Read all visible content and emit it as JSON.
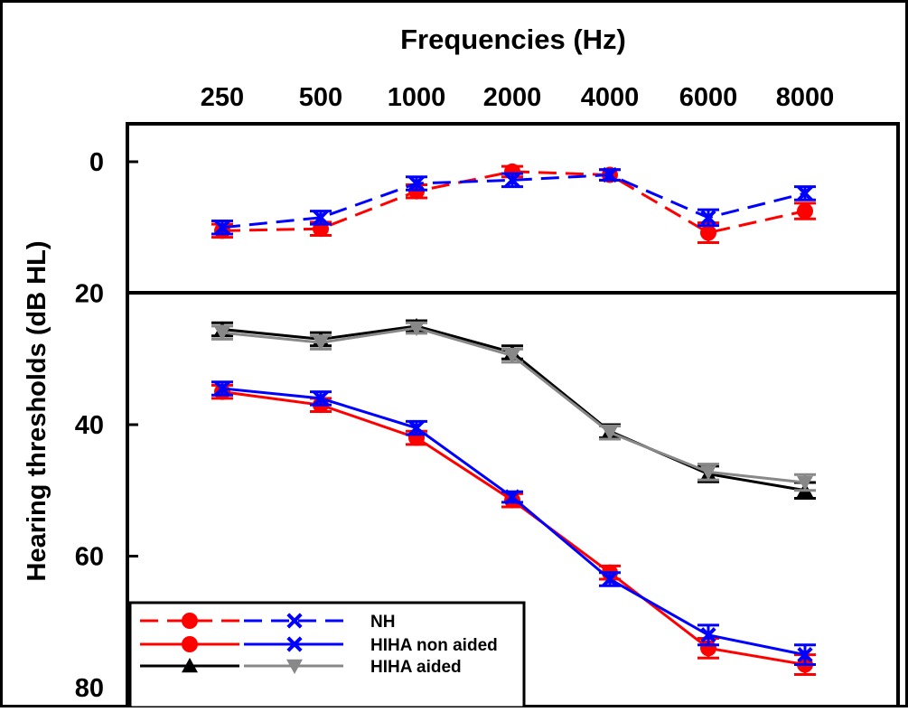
{
  "chart_data": {
    "type": "line",
    "title": "Frequencies (Hz)",
    "xlabel": "Frequencies (Hz)",
    "ylabel": "Hearing thresholds (dB HL)",
    "x": [
      250,
      500,
      1000,
      2000,
      4000,
      6000,
      8000
    ],
    "x_tick_labels": [
      "250",
      "500",
      "1000",
      "2000",
      "4000",
      "6000",
      "8000"
    ],
    "ylim": [
      0,
      80
    ],
    "y_reversed": true,
    "y_ticks": [
      0,
      20,
      40,
      60,
      80
    ],
    "y_tick_labels": [
      "0",
      "20",
      "40",
      "60",
      "80"
    ],
    "x_axis_position": "top",
    "grid": false,
    "legend_position": "bottom-left",
    "series": [
      {
        "group": "NH",
        "ear": "left",
        "marker": "circle",
        "color": "#ff0000",
        "dash": "dashed",
        "values": [
          10.5,
          10.2,
          4.5,
          1.5,
          2.0,
          10.8,
          7.5
        ],
        "errors": [
          1.0,
          1.0,
          1.0,
          0.8,
          0.8,
          1.5,
          1.2
        ]
      },
      {
        "group": "NH",
        "ear": "right",
        "marker": "x",
        "color": "#0000ff",
        "dash": "dashed",
        "values": [
          10.0,
          8.5,
          3.3,
          2.8,
          2.0,
          8.5,
          4.8
        ],
        "errors": [
          1.0,
          1.0,
          1.0,
          1.0,
          0.8,
          1.2,
          1.0
        ]
      },
      {
        "group": "HIHA non aided",
        "ear": "left",
        "marker": "circle",
        "color": "#ff0000",
        "dash": "solid",
        "values": [
          35.0,
          37.0,
          42.0,
          51.5,
          62.5,
          74.0,
          76.5
        ],
        "errors": [
          1.0,
          1.0,
          1.0,
          1.0,
          1.0,
          1.5,
          1.5
        ]
      },
      {
        "group": "HIHA non aided",
        "ear": "right",
        "marker": "x",
        "color": "#0000ff",
        "dash": "solid",
        "values": [
          34.5,
          36.0,
          40.5,
          51.0,
          63.5,
          72.0,
          75.0
        ],
        "errors": [
          1.0,
          1.0,
          1.0,
          0.8,
          1.0,
          1.5,
          1.5
        ]
      },
      {
        "group": "HIHA aided",
        "ear": "left",
        "marker": "triangle-up",
        "color": "#000000",
        "dash": "solid",
        "values": [
          25.5,
          27.0,
          25.0,
          29.0,
          41.0,
          47.5,
          50.0
        ],
        "errors": [
          1.0,
          1.0,
          0.8,
          1.0,
          1.0,
          1.2,
          1.2
        ]
      },
      {
        "group": "HIHA aided",
        "ear": "right",
        "marker": "triangle-down",
        "color": "#888888",
        "dash": "solid",
        "values": [
          26.0,
          27.5,
          25.3,
          29.5,
          41.2,
          47.2,
          48.8
        ],
        "errors": [
          1.0,
          1.0,
          0.8,
          1.0,
          1.0,
          1.2,
          1.2
        ]
      }
    ],
    "legend": [
      {
        "label": "NH",
        "left_marker": "circle",
        "left_color": "#ff0000",
        "right_marker": "x",
        "right_color": "#0000ff",
        "dash": "dashed"
      },
      {
        "label": "HIHA non aided",
        "left_marker": "circle",
        "left_color": "#ff0000",
        "right_marker": "x",
        "right_color": "#0000ff",
        "dash": "solid"
      },
      {
        "label": "HIHA aided",
        "left_marker": "triangle-up",
        "left_color": "#000000",
        "right_marker": "triangle-down",
        "right_color": "#888888",
        "dash": "solid"
      }
    ]
  }
}
